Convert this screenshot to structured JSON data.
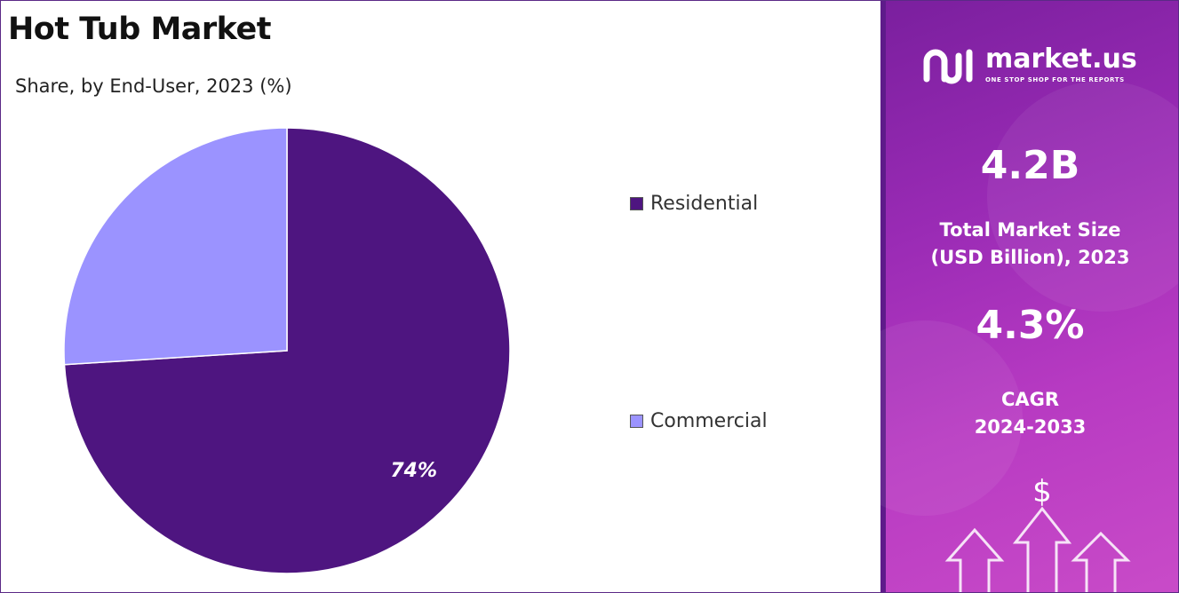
{
  "title": "Hot Tub Market",
  "subtitle": "Share, by End-User, 2023 (%)",
  "chart_data": {
    "type": "pie",
    "title": "Hot Tub Market",
    "subtitle": "Share, by End-User, 2023 (%)",
    "categories": [
      "Residential",
      "Commercial"
    ],
    "values": [
      74,
      26
    ],
    "data_labels": [
      "74%",
      ""
    ],
    "colors": [
      "#4e1580",
      "#9b93ff"
    ],
    "legend_position": "right"
  },
  "legend": [
    {
      "label": "Residential",
      "color": "#4e1580"
    },
    {
      "label": "Commercial",
      "color": "#9b93ff"
    }
  ],
  "sidebar": {
    "brand": "market.us",
    "tagline": "ONE STOP SHOP FOR THE REPORTS",
    "market_size_value": "4.2B",
    "market_size_label_1": "Total Market Size",
    "market_size_label_2": "(USD Billion), 2023",
    "cagr_value": "4.3%",
    "cagr_label_1": "CAGR",
    "cagr_label_2": "2024-2033",
    "dollar_symbol": "$",
    "logo_icon": "market-us-logo-icon",
    "decor_icon": "growth-arrows-icon"
  }
}
